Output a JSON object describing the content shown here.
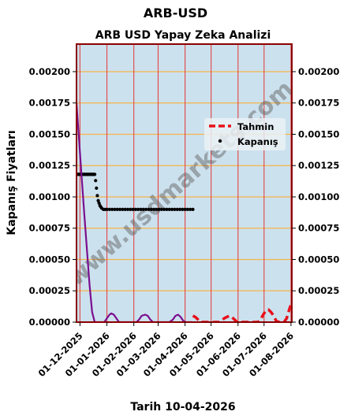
{
  "chart_data": {
    "type": "line",
    "title": "ARB-USD",
    "subtitle": "ARB USD Yapay Zeka Analizi",
    "xlabel": "Tarih 10-04-2026",
    "ylabel": "Kapanış Fiyatları",
    "watermark": "www.usdmarkets.com",
    "ylim": [
      0,
      0.00222
    ],
    "xlim": [
      "2025-11-27",
      "2026-08-02"
    ],
    "y_ticks": [
      "0.00000",
      "0.00025",
      "0.00050",
      "0.00075",
      "0.00100",
      "0.00125",
      "0.00150",
      "0.00175",
      "0.00200"
    ],
    "x_ticks": [
      "01-12-2025",
      "01-01-2026",
      "01-02-2026",
      "01-03-2026",
      "01-04-2026",
      "01-05-2026",
      "01-06-2026",
      "01-07-2026",
      "01-08-2026"
    ],
    "legend": {
      "position": "right",
      "entries": [
        "Tahmin",
        "Kapanış"
      ]
    },
    "grid": true,
    "colors": {
      "plot_bg": "#cce1ee",
      "h_grid": "#f5b34a",
      "v_grid": "#e05050",
      "border": "#8b0000",
      "purple": "#7a0f8e",
      "forecast": "#e8101a",
      "close": "#000000"
    },
    "series": [
      {
        "name": "Kapanış",
        "style": "dots",
        "x": [
          "2025-11-28",
          "2025-11-29",
          "2025-11-30",
          "2025-12-01",
          "2025-12-02",
          "2025-12-03",
          "2025-12-04",
          "2025-12-05",
          "2025-12-06",
          "2025-12-07",
          "2025-12-08",
          "2025-12-09",
          "2025-12-10",
          "2025-12-11",
          "2025-12-12",
          "2025-12-13",
          "2025-12-14",
          "2025-12-15",
          "2025-12-16",
          "2025-12-17",
          "2025-12-18",
          "2025-12-19",
          "2025-12-20",
          "2025-12-21",
          "2025-12-22",
          "2025-12-23",
          "2025-12-24",
          "2025-12-25",
          "2025-12-26",
          "2025-12-28",
          "2025-12-30",
          "2026-01-01",
          "2026-01-04",
          "2026-01-07",
          "2026-01-10",
          "2026-01-13",
          "2026-01-16",
          "2026-01-19",
          "2026-01-22",
          "2026-01-25",
          "2026-01-28",
          "2026-01-31",
          "2026-02-03",
          "2026-02-06",
          "2026-02-09",
          "2026-02-12",
          "2026-02-15",
          "2026-02-18",
          "2026-02-21",
          "2026-02-24",
          "2026-02-27",
          "2026-03-02",
          "2026-03-05",
          "2026-03-08",
          "2026-03-11",
          "2026-03-14",
          "2026-03-17",
          "2026-03-20",
          "2026-03-23",
          "2026-03-26",
          "2026-03-29",
          "2026-04-01",
          "2026-04-04",
          "2026-04-07",
          "2026-04-10"
        ],
        "y": [
          0.00118,
          0.00118,
          0.00118,
          0.00118,
          0.00118,
          0.00118,
          0.00118,
          0.00118,
          0.00118,
          0.00118,
          0.00118,
          0.00118,
          0.00118,
          0.00118,
          0.00118,
          0.00118,
          0.00118,
          0.00118,
          0.00118,
          0.00118,
          0.00118,
          0.00113,
          0.00107,
          0.00101,
          0.00097,
          0.00095,
          0.00093,
          0.00092,
          0.00091,
          0.0009,
          0.0009,
          0.0009,
          0.0009,
          0.0009,
          0.0009,
          0.0009,
          0.0009,
          0.0009,
          0.0009,
          0.0009,
          0.0009,
          0.0009,
          0.0009,
          0.0009,
          0.0009,
          0.0009,
          0.0009,
          0.0009,
          0.0009,
          0.0009,
          0.0009,
          0.0009,
          0.0009,
          0.0009,
          0.0009,
          0.0009,
          0.0009,
          0.0009,
          0.0009,
          0.0009,
          0.0009,
          0.0009,
          0.0009,
          0.0009,
          0.0009
        ]
      },
      {
        "name": "",
        "style": "line",
        "x": [
          "2025-11-27",
          "2025-11-30",
          "2025-12-03",
          "2025-12-06",
          "2025-12-09",
          "2025-12-12",
          "2025-12-15",
          "2025-12-18",
          "2025-12-20",
          "2025-12-24",
          "2025-12-27",
          "2025-12-29",
          "2026-01-01",
          "2026-01-04",
          "2026-01-06",
          "2026-01-09",
          "2026-01-12",
          "2026-01-15",
          "2026-01-19",
          "2026-01-22",
          "2026-01-26",
          "2026-01-29",
          "2026-02-01",
          "2026-02-04",
          "2026-02-07",
          "2026-02-10",
          "2026-02-14",
          "2026-02-17",
          "2026-02-20",
          "2026-02-23",
          "2026-02-26",
          "2026-03-01",
          "2026-03-04",
          "2026-03-07",
          "2026-03-10",
          "2026-03-14",
          "2026-03-18",
          "2026-03-21",
          "2026-03-24",
          "2026-03-27",
          "2026-03-30",
          "2026-04-02",
          "2026-04-05",
          "2026-04-09"
        ],
        "y": [
          0.00175,
          0.00145,
          0.00115,
          0.00086,
          0.00058,
          0.0003,
          8e-05,
          0,
          0,
          0,
          0,
          0,
          3e-05,
          6e-05,
          7e-05,
          6e-05,
          3e-05,
          0,
          0,
          0,
          0,
          0,
          0,
          0,
          2e-05,
          5e-05,
          6e-05,
          5e-05,
          2e-05,
          0,
          0,
          0,
          0,
          0,
          0,
          0,
          2e-05,
          5e-05,
          6e-05,
          4e-05,
          1e-05,
          0,
          0,
          0
        ]
      },
      {
        "name": "Tahmin",
        "style": "dashed",
        "x": [
          "2026-04-10",
          "2026-04-13",
          "2026-04-16",
          "2026-04-19",
          "2026-04-22",
          "2026-04-25",
          "2026-04-28",
          "2026-05-01",
          "2026-05-04",
          "2026-05-07",
          "2026-05-10",
          "2026-05-13",
          "2026-05-16",
          "2026-05-19",
          "2026-05-22",
          "2026-05-25",
          "2026-05-28",
          "2026-05-31",
          "2026-06-03",
          "2026-06-06",
          "2026-06-09",
          "2026-06-12",
          "2026-06-15",
          "2026-06-18",
          "2026-06-21",
          "2026-06-24",
          "2026-06-27",
          "2026-06-30",
          "2026-07-03",
          "2026-07-06",
          "2026-07-09",
          "2026-07-12",
          "2026-07-15",
          "2026-07-18",
          "2026-07-21",
          "2026-07-24",
          "2026-07-27",
          "2026-07-30",
          "2026-08-02"
        ],
        "y": [
          5e-05,
          4e-05,
          2e-05,
          0,
          0,
          0,
          0,
          0,
          0,
          0,
          0,
          1e-05,
          3e-05,
          4e-05,
          5e-05,
          4e-05,
          2e-05,
          0,
          0,
          0,
          0,
          0,
          0,
          0,
          0,
          0,
          2e-05,
          6e-05,
          9e-05,
          0.0001,
          8e-05,
          5e-05,
          1e-05,
          0,
          0,
          0,
          3e-05,
          0.0001,
          0.00016
        ]
      }
    ]
  }
}
